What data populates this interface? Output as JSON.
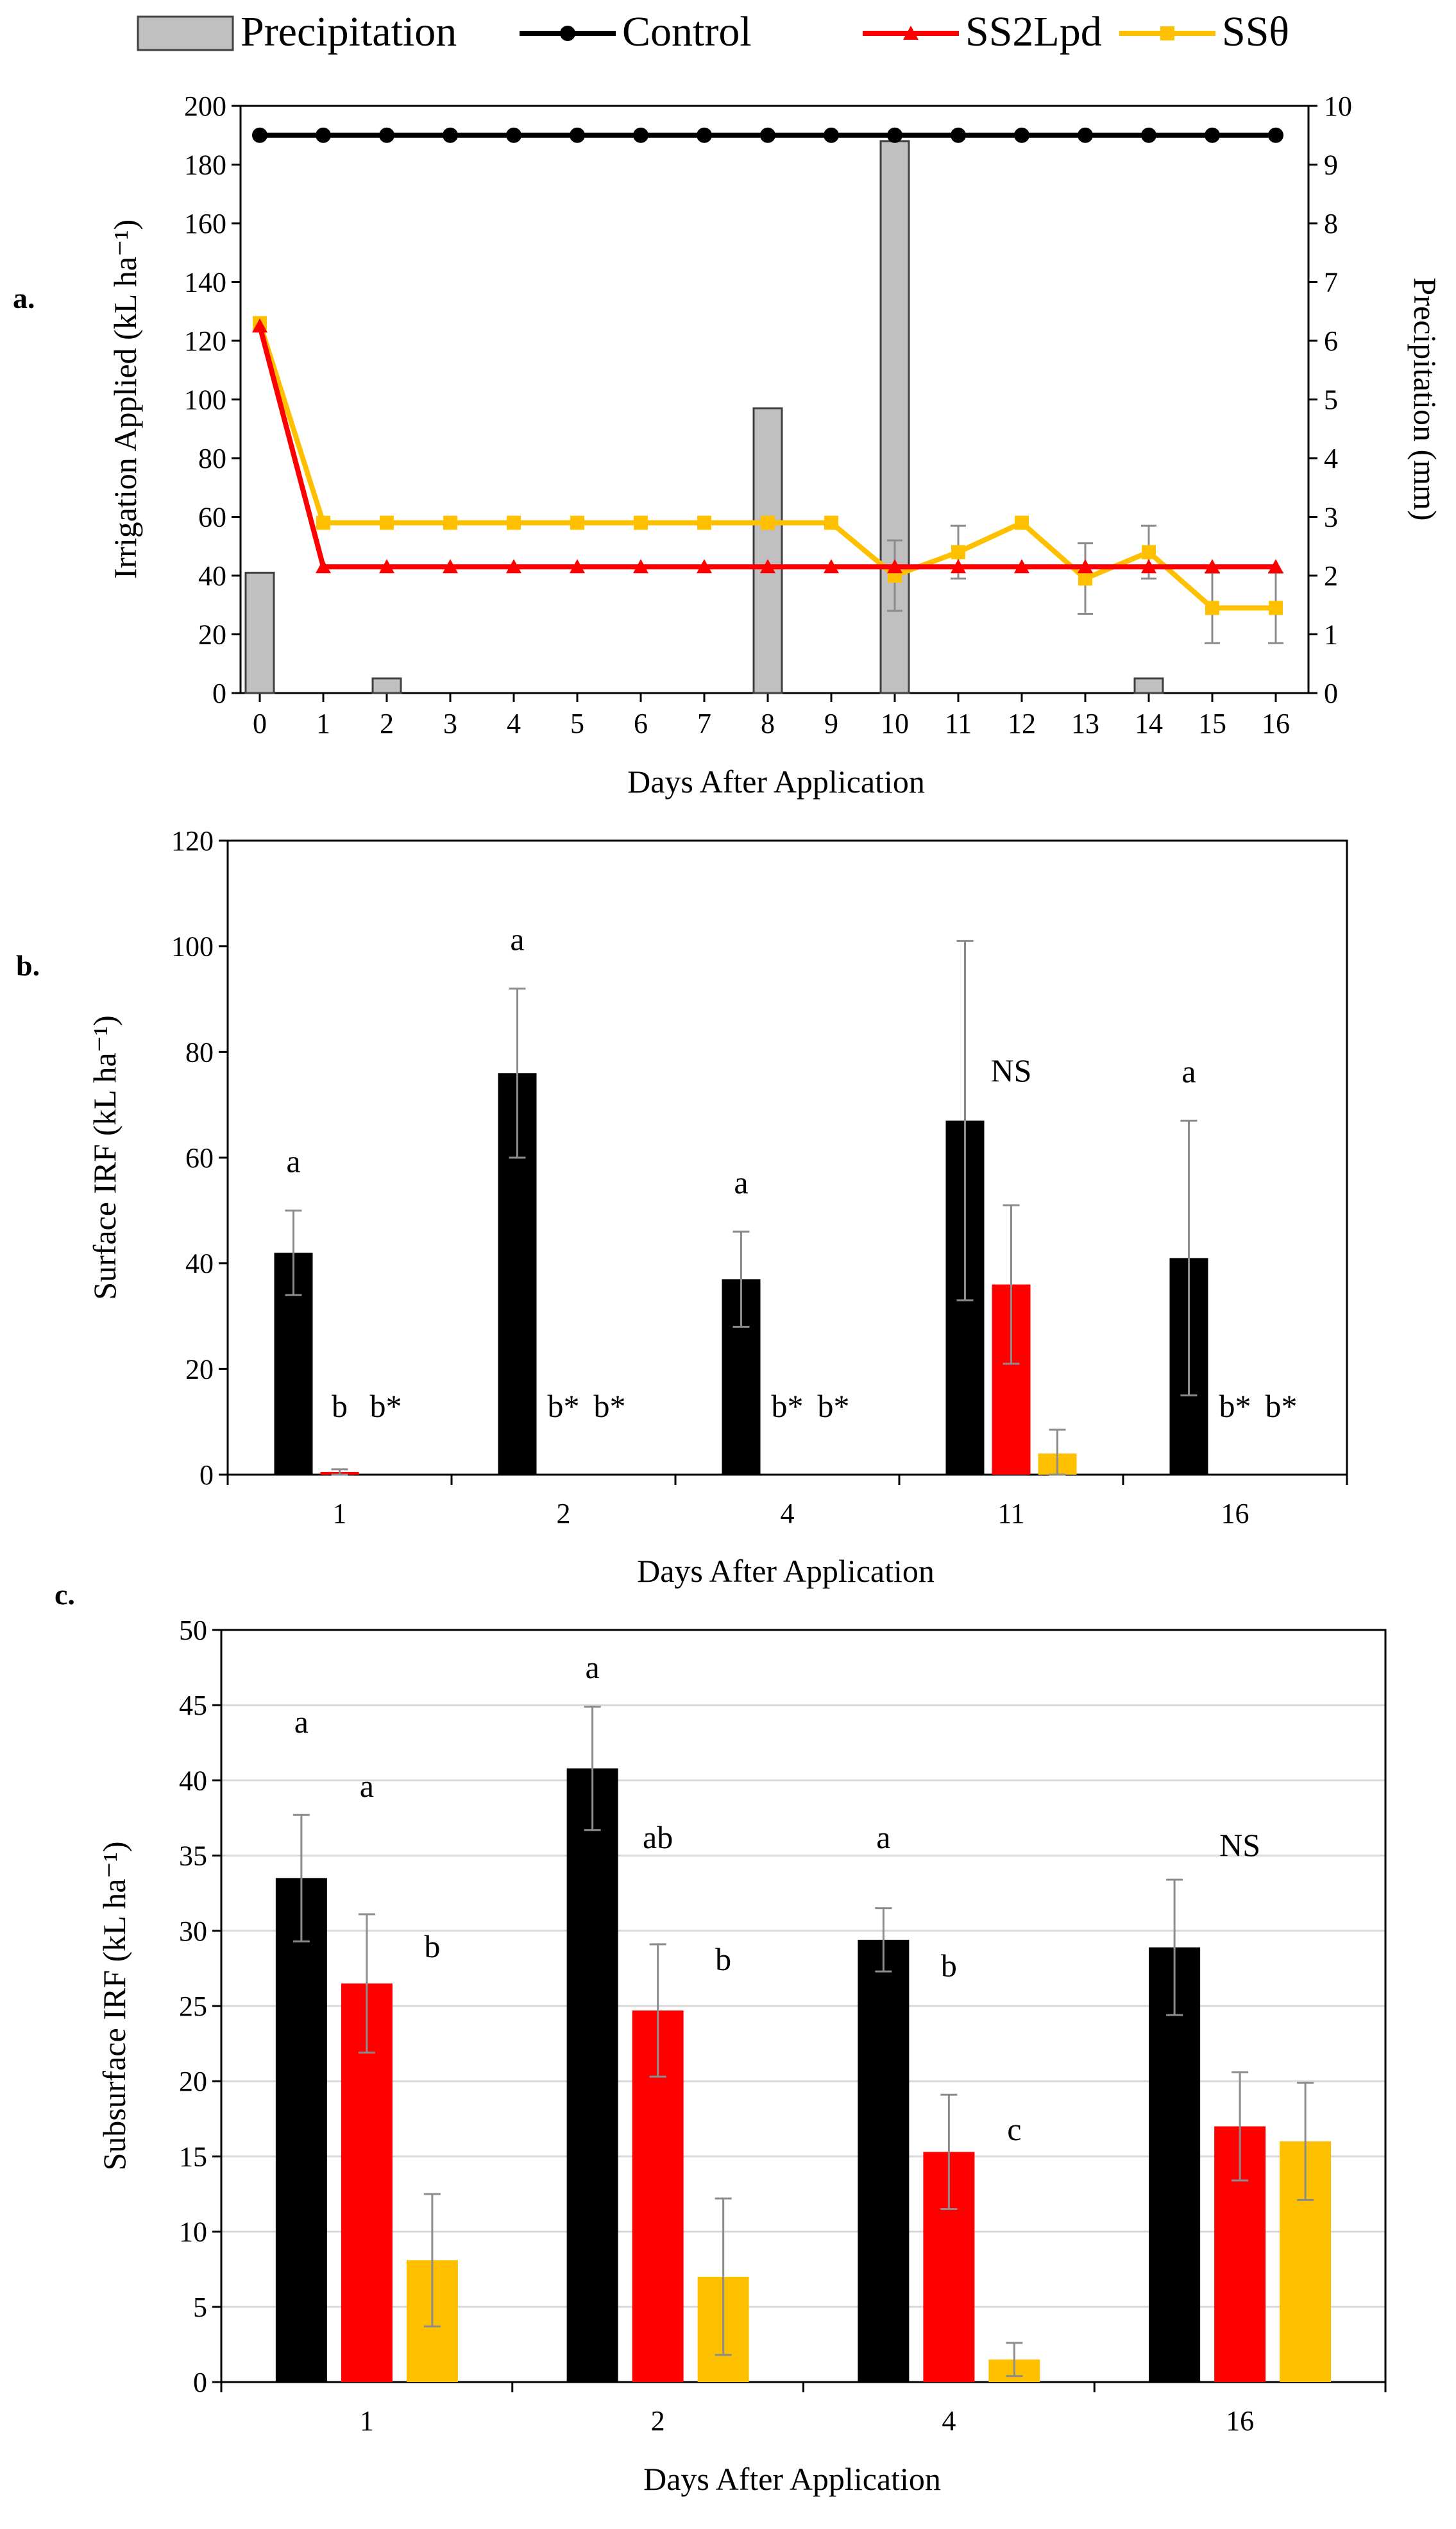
{
  "colors": {
    "control": "#000000",
    "ss2lpd": "#ff0000",
    "sstheta": "#ffc000",
    "precip": "#c0c0c0",
    "precip_edge": "#404040",
    "grid": "#d9d9d9",
    "errorbar": "#8c8c8c"
  },
  "chart_data": [
    {
      "id": "a",
      "panel_label": "a.",
      "type": "line",
      "legend": [
        {
          "name": "Precipitation",
          "marker": "bar"
        },
        {
          "name": "Control",
          "marker": "circle"
        },
        {
          "name": "SS2Lpd",
          "marker": "triangle"
        },
        {
          "name": "SSθ",
          "marker": "square"
        }
      ],
      "xlabel": "Days After Application",
      "ylabel": "Irrigation Applied (kL ha⁻¹)",
      "y2label": "Precipitation (mm)",
      "x": [
        0,
        1,
        2,
        3,
        4,
        5,
        6,
        7,
        8,
        9,
        10,
        11,
        12,
        13,
        14,
        15,
        16
      ],
      "x_ticks": [
        "0",
        "1",
        "2",
        "3",
        "4",
        "5",
        "6",
        "7",
        "8",
        "9",
        "10",
        "11",
        "12",
        "13",
        "14",
        "15",
        "16"
      ],
      "ylim": [
        0,
        200
      ],
      "y_ticks": [
        "0",
        "20",
        "40",
        "60",
        "80",
        "100",
        "120",
        "140",
        "160",
        "180",
        "200"
      ],
      "y2lim": [
        0,
        10
      ],
      "y2_ticks": [
        "0",
        "1",
        "2",
        "3",
        "4",
        "5",
        "6",
        "7",
        "8",
        "9",
        "10"
      ],
      "precipitation": [
        2.05,
        0,
        0.25,
        0,
        0,
        0,
        0,
        0,
        4.85,
        0,
        9.4,
        0,
        0,
        0,
        0.25,
        0,
        0
      ],
      "series": [
        {
          "name": "Control",
          "values": [
            190,
            190,
            190,
            190,
            190,
            190,
            190,
            190,
            190,
            190,
            190,
            190,
            190,
            190,
            190,
            190,
            190
          ]
        },
        {
          "name": "SS2Lpd",
          "values": [
            125,
            43,
            43,
            43,
            43,
            43,
            43,
            43,
            43,
            43,
            43,
            43,
            43,
            43,
            43,
            43,
            43
          ]
        },
        {
          "name": "SSθ",
          "values": [
            126,
            58,
            58,
            58,
            58,
            58,
            58,
            58,
            58,
            58,
            40,
            48,
            58,
            39,
            48,
            29,
            29
          ],
          "errors": [
            null,
            null,
            null,
            null,
            null,
            null,
            null,
            null,
            null,
            null,
            12,
            9,
            null,
            12,
            9,
            12,
            12
          ]
        }
      ]
    },
    {
      "id": "b",
      "panel_label": "b.",
      "type": "bar",
      "xlabel": "Days After Application",
      "ylabel": "Surface IRF (kL ha⁻¹)",
      "categories": [
        "1",
        "2",
        "4",
        "11",
        "16"
      ],
      "ylim": [
        0,
        120
      ],
      "y_ticks": [
        "0",
        "20",
        "40",
        "60",
        "80",
        "100",
        "120"
      ],
      "series": [
        {
          "name": "Control",
          "values": [
            42,
            76,
            37,
            67,
            41
          ],
          "errors": [
            8,
            16,
            9,
            34,
            26
          ]
        },
        {
          "name": "SS2Lpd",
          "values": [
            0.5,
            0,
            0,
            36,
            0
          ],
          "errors": [
            0.5,
            0,
            0,
            15,
            0
          ]
        },
        {
          "name": "SSθ",
          "values": [
            0,
            0,
            0,
            4,
            0
          ],
          "errors": [
            0,
            0,
            0,
            4.5,
            0
          ]
        }
      ],
      "annotations": [
        {
          "category": "1",
          "series": "Control",
          "text": "a"
        },
        {
          "category": "1",
          "series": "SS2Lpd",
          "text": "b"
        },
        {
          "category": "1",
          "series": "SSθ",
          "text": "b*"
        },
        {
          "category": "2",
          "series": "Control",
          "text": "a"
        },
        {
          "category": "2",
          "series": "SS2Lpd",
          "text": "b*"
        },
        {
          "category": "2",
          "series": "SSθ",
          "text": "b*"
        },
        {
          "category": "4",
          "series": "Control",
          "text": "a"
        },
        {
          "category": "4",
          "series": "SS2Lpd",
          "text": "b*"
        },
        {
          "category": "4",
          "series": "SSθ",
          "text": "b*"
        },
        {
          "category": "11",
          "series": "SS2Lpd",
          "text": "NS"
        },
        {
          "category": "16",
          "series": "Control",
          "text": "a"
        },
        {
          "category": "16",
          "series": "SS2Lpd",
          "text": "b*"
        },
        {
          "category": "16",
          "series": "SSθ",
          "text": "b*"
        }
      ]
    },
    {
      "id": "c",
      "panel_label": "c.",
      "type": "bar",
      "xlabel": "Days After Application",
      "ylabel": "Subsurface IRF (kL ha⁻¹)",
      "categories": [
        "1",
        "2",
        "4",
        "16"
      ],
      "ylim": [
        0,
        50
      ],
      "y_ticks": [
        "0",
        "5",
        "10",
        "15",
        "20",
        "25",
        "30",
        "35",
        "40",
        "45",
        "50"
      ],
      "grid": true,
      "series": [
        {
          "name": "Control",
          "values": [
            33.5,
            40.8,
            29.4,
            28.9
          ],
          "errors": [
            4.2,
            4.1,
            2.1,
            4.5
          ]
        },
        {
          "name": "SS2Lpd",
          "values": [
            26.5,
            24.7,
            15.3,
            17.0
          ],
          "errors": [
            4.6,
            4.4,
            3.8,
            3.6
          ]
        },
        {
          "name": "SSθ",
          "values": [
            8.1,
            7.0,
            1.5,
            16.0
          ],
          "errors": [
            4.4,
            5.2,
            1.1,
            3.9
          ]
        }
      ],
      "annotations": [
        {
          "category": "1",
          "series": "Control",
          "text": "a"
        },
        {
          "category": "1",
          "series": "SS2Lpd",
          "text": "a"
        },
        {
          "category": "1",
          "series": "SSθ",
          "text": "b"
        },
        {
          "category": "2",
          "series": "Control",
          "text": "a"
        },
        {
          "category": "2",
          "series": "SS2Lpd",
          "text": "ab"
        },
        {
          "category": "2",
          "series": "SSθ",
          "text": "b"
        },
        {
          "category": "4",
          "series": "Control",
          "text": "a"
        },
        {
          "category": "4",
          "series": "SS2Lpd",
          "text": "b"
        },
        {
          "category": "4",
          "series": "SSθ",
          "text": "c"
        },
        {
          "category": "16",
          "series": "SS2Lpd",
          "text": "NS"
        }
      ]
    }
  ]
}
